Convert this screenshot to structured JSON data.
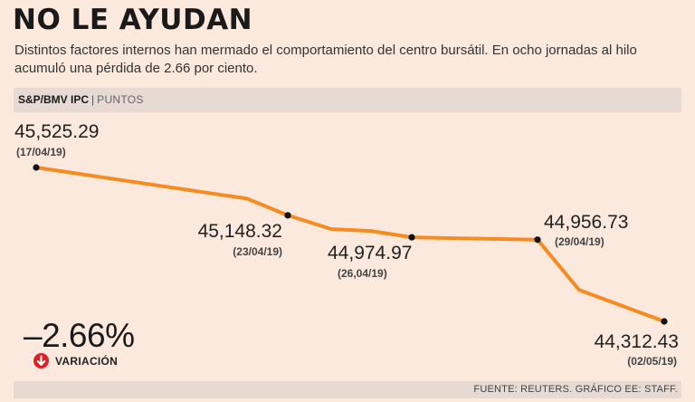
{
  "header": {
    "title": "NO LE AYUDAN",
    "subtitle": "Distintos factores internos han mermado el comportamiento del centro bursátil. En ocho jornadas al hilo acumuló una pérdida de 2.66 por ciento."
  },
  "band": {
    "index_name": "S&P/BMV IPC",
    "separator": "|",
    "unit": "PUNTOS"
  },
  "chart_data": {
    "type": "line",
    "title": "NO LE AYUDAN",
    "ylabel": "PUNTOS",
    "series": [
      {
        "name": "S&P/BMV IPC",
        "color": "#f68b1f",
        "values": [
          45525.29,
          45280,
          45148.32,
          45040,
          45025,
          44974.97,
          44965,
          44956.73,
          44560,
          44312.43
        ]
      }
    ],
    "labeled_points": [
      {
        "index": 0,
        "value": 45525.29,
        "value_text": "45,525.29",
        "date": "(17/04/19)"
      },
      {
        "index": 2,
        "value": 45148.32,
        "value_text": "45,148.32",
        "date": "(23/04/19)"
      },
      {
        "index": 5,
        "value": 44974.97,
        "value_text": "44,974.97",
        "date": "(26,04/19)"
      },
      {
        "index": 7,
        "value": 44956.73,
        "value_text": "44,956.73",
        "date": "(29/04/19)"
      },
      {
        "index": 9,
        "value": 44312.43,
        "value_text": "44,312.43",
        "date": "(02/05/19)"
      }
    ]
  },
  "variation": {
    "value": "–2.66%",
    "label": "VARIACIÓN",
    "icon": "arrow-down-circle-icon",
    "color": "#e02020"
  },
  "footer": {
    "source": "FUENTE: REUTERS. GRÁFICO EE: STAFF."
  }
}
